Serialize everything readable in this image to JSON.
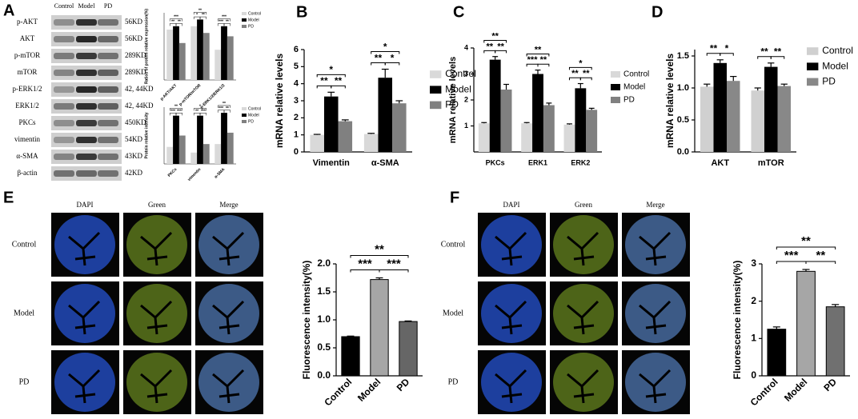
{
  "panel_labels": [
    "A",
    "B",
    "C",
    "D",
    "E",
    "F"
  ],
  "blot": {
    "lanes": [
      "Control",
      "Model",
      "PD"
    ],
    "proteins": [
      "p-AKT",
      "AKT",
      "p-mTOR",
      "mTOR",
      "p-ERK1/2",
      "ERK1/2",
      "PKCs",
      "vimentin",
      "α-SMA",
      "β-actin"
    ],
    "sizes": [
      "56KD",
      "56KD",
      "289KD",
      "289KD",
      "42, 44KD",
      "42, 44KD",
      "450KD",
      "54KD",
      "43KD",
      "42KD"
    ]
  },
  "images_e": {
    "columns": [
      "DAPI",
      "Green",
      "Merge"
    ],
    "rows": [
      "Control",
      "Model",
      "PD"
    ]
  },
  "images_f": {
    "columns": [
      "DAPI",
      "Green",
      "Merge"
    ],
    "rows": [
      "Control",
      "Model",
      "PD"
    ]
  },
  "chart_data": [
    {
      "type": "bar",
      "y_label": "Ratios of protein relative expression(%)",
      "categories": [
        "p-AKT/AKT",
        "p-mTOR/mTOR",
        "p-ERK1/2/ERK1/2"
      ],
      "series": [
        {
          "name": "Control",
          "color": "#d9d9d9",
          "values": [
            0.75,
            0.8,
            0.45
          ]
        },
        {
          "name": "Model",
          "color": "#000000",
          "values": [
            0.8,
            0.9,
            0.8
          ]
        },
        {
          "name": "PD",
          "color": "#808080",
          "values": [
            0.55,
            0.7,
            0.65
          ]
        }
      ],
      "ylim": [
        0,
        1
      ],
      "significance": [
        [
          "**",
          "**",
          "***"
        ],
        [
          "*",
          "**",
          "**"
        ],
        [
          "***",
          "**",
          "***"
        ]
      ]
    },
    {
      "type": "bar",
      "y_label": "Protein relative intensity",
      "categories": [
        "PKCs",
        "vimentin",
        "α-SMA"
      ],
      "series": [
        {
          "name": "Control",
          "color": "#d9d9d9",
          "values": [
            0.3,
            0.2,
            0.35
          ]
        },
        {
          "name": "Model",
          "color": "#000000",
          "values": [
            0.85,
            0.85,
            0.9
          ]
        },
        {
          "name": "PD",
          "color": "#808080",
          "values": [
            0.5,
            0.35,
            0.55
          ]
        }
      ],
      "ylim": [
        0,
        1
      ],
      "significance": [
        [
          "***",
          "***",
          "**"
        ],
        [
          "**",
          "***",
          "*"
        ],
        [
          "***",
          "**",
          "**"
        ]
      ]
    },
    {
      "type": "bar",
      "y_label": "mRNA relative levels",
      "categories": [
        "Vimentin",
        "α-SMA"
      ],
      "series": [
        {
          "name": "Control",
          "color": "#d9d9d9",
          "values": [
            1.0,
            1.05
          ],
          "errors": [
            0.03,
            0.04
          ]
        },
        {
          "name": "Model",
          "color": "#000000",
          "values": [
            3.25,
            4.35
          ],
          "errors": [
            0.25,
            0.5
          ]
        },
        {
          "name": "PD",
          "color": "#808080",
          "values": [
            1.8,
            2.85
          ],
          "errors": [
            0.08,
            0.15
          ]
        }
      ],
      "ylim": [
        0,
        6
      ],
      "yticks": [
        0,
        1,
        2,
        3,
        4,
        5,
        6
      ],
      "significance": [
        [
          "**",
          "**",
          "*"
        ],
        [
          "**",
          "*",
          "*"
        ]
      ]
    },
    {
      "type": "bar",
      "y_label": "mRNA relative levels",
      "categories": [
        "PKCs",
        "ERK1",
        "ERK2"
      ],
      "series": [
        {
          "name": "Control",
          "color": "#d9d9d9",
          "values": [
            1.1,
            1.1,
            1.05
          ],
          "errors": [
            0.03,
            0.03,
            0.03
          ]
        },
        {
          "name": "Model",
          "color": "#000000",
          "values": [
            3.55,
            3.0,
            2.45
          ],
          "errors": [
            0.12,
            0.15,
            0.18
          ]
        },
        {
          "name": "PD",
          "color": "#808080",
          "values": [
            2.4,
            1.8,
            1.62
          ],
          "errors": [
            0.2,
            0.08,
            0.06
          ]
        }
      ],
      "ylim": [
        0,
        4
      ],
      "yticks": [
        1,
        2,
        3,
        4
      ],
      "significance": [
        [
          "**",
          "**",
          "**"
        ],
        [
          "***",
          "**",
          "**"
        ],
        [
          "**",
          "**",
          "*"
        ]
      ]
    },
    {
      "type": "bar",
      "y_label": "mRNA relative levels",
      "categories": [
        "AKT",
        "mTOR"
      ],
      "series": [
        {
          "name": "Control",
          "color": "#d0d0d0",
          "values": [
            1.02,
            0.96
          ],
          "errors": [
            0.04,
            0.04
          ]
        },
        {
          "name": "Model",
          "color": "#000000",
          "values": [
            1.39,
            1.33
          ],
          "errors": [
            0.05,
            0.06
          ]
        },
        {
          "name": "PD",
          "color": "#888888",
          "values": [
            1.11,
            1.03
          ],
          "errors": [
            0.07,
            0.03
          ]
        }
      ],
      "ylim": [
        0,
        1.6
      ],
      "yticks": [
        {
          "value": 0,
          "label": "0.0"
        },
        {
          "value": 0.5,
          "label": "0.5"
        },
        {
          "value": 1,
          "label": "1.0"
        },
        {
          "value": 1.5,
          "label": "1.5"
        }
      ],
      "significance": [
        [
          "**",
          "*",
          null
        ],
        [
          "**",
          "**",
          null
        ]
      ]
    },
    {
      "type": "bar",
      "y_label": "Fluorescence intensity(%)",
      "categories": [
        "Control",
        "Model",
        "PD"
      ],
      "values": [
        0.7,
        1.72,
        0.97
      ],
      "errors": [
        0.01,
        0.03,
        0.01
      ],
      "colors": [
        "#000000",
        "#a6a6a6",
        "#666666"
      ],
      "ylim": [
        0,
        2
      ],
      "yticks": [
        {
          "value": 0,
          "label": "0.0"
        },
        {
          "value": 0.5,
          "label": "0.5"
        },
        {
          "value": 1,
          "label": "1.0"
        },
        {
          "value": 1.5,
          "label": "1.5"
        },
        {
          "value": 2,
          "label": "2.0"
        }
      ],
      "significance": [
        "***",
        "***",
        "**"
      ]
    },
    {
      "type": "bar",
      "y_label": "Fluorescence intensity(%)",
      "categories": [
        "Control",
        "Model",
        "PD"
      ],
      "values": [
        1.25,
        2.8,
        1.85
      ],
      "errors": [
        0.06,
        0.05,
        0.06
      ],
      "colors": [
        "#000000",
        "#a6a6a6",
        "#707070"
      ],
      "ylim": [
        0,
        3
      ],
      "yticks": [
        0,
        1,
        2,
        3
      ],
      "significance": [
        "***",
        "**",
        "**"
      ]
    }
  ]
}
